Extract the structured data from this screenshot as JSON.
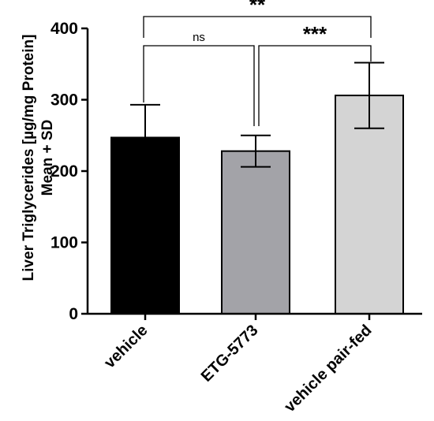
{
  "chart_data": {
    "type": "bar",
    "categories": [
      "vehicle",
      "ETG-5773",
      "vehicle pair-fed"
    ],
    "values": [
      247,
      228,
      306
    ],
    "errors": [
      46,
      22,
      46
    ],
    "colors": [
      "#000000",
      "#a3a3a8",
      "#d4d4d4"
    ],
    "ylabel_lines": [
      "Liver Triglycerides [µg/mg Protein]",
      "Mean + SD"
    ],
    "ylim": [
      0,
      400
    ],
    "yticks": [
      0,
      100,
      200,
      300,
      400
    ],
    "grid": false,
    "significance": [
      {
        "from": 0,
        "to": 2,
        "label": "**"
      },
      {
        "from": 0,
        "to": 1,
        "label": "ns"
      },
      {
        "from": 1,
        "to": 2,
        "label": "***"
      }
    ]
  }
}
